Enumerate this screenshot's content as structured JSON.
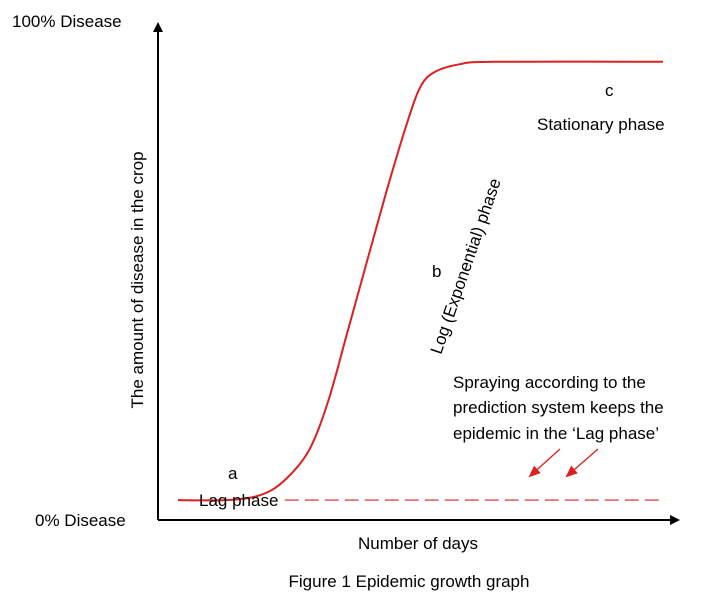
{
  "chart_data": {
    "type": "line",
    "title": "",
    "caption": "Figure 1 Epidemic growth graph",
    "xlabel": "Number  of days",
    "ylabel": "The amount  of disease in the crop",
    "y_top_label": "100% Disease",
    "y_bottom_label": "0% Disease",
    "curve_color": "#dd1f1f",
    "axis_color": "#000000",
    "grid": false,
    "legend": "none",
    "series": [
      {
        "style": "solid",
        "points": [
          [
            0,
            4
          ],
          [
            10,
            4
          ],
          [
            17,
            5
          ],
          [
            22,
            8
          ],
          [
            27,
            14
          ],
          [
            31,
            24
          ],
          [
            35,
            38
          ],
          [
            39,
            52
          ],
          [
            43,
            66
          ],
          [
            47,
            79
          ],
          [
            50,
            87
          ],
          [
            53,
            90
          ],
          [
            58,
            91.5
          ],
          [
            65,
            92
          ],
          [
            100,
            92
          ]
        ]
      },
      {
        "style": "dashed",
        "points": [
          [
            22,
            4
          ],
          [
            100,
            4
          ]
        ]
      }
    ],
    "points": [
      {
        "label": "a",
        "x": 11,
        "y": 4
      },
      {
        "label": "b",
        "x": 43,
        "y": 64
      },
      {
        "label": "c",
        "x": 82,
        "y": 92
      }
    ],
    "phases": [
      {
        "label": "Lag phase"
      },
      {
        "label": "Log (Exponential) phase"
      },
      {
        "label": "Stationary  phase"
      }
    ],
    "annotation": {
      "lines": [
        "Spraying  according  to the",
        "prediction system keeps the",
        "epidemic in the ‘Lag phase’"
      ]
    }
  }
}
